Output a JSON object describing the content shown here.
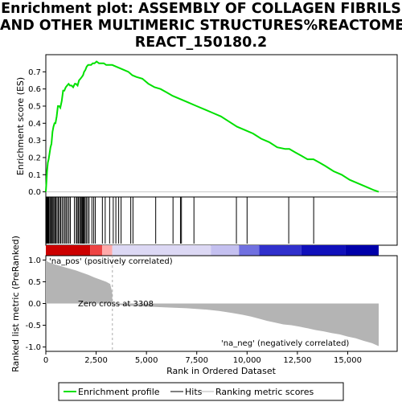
{
  "title_lines": [
    "Enrichment plot: ASSEMBLY OF COLLAGEN FIBRILS",
    "AND OTHER MULTIMERIC STRUCTURES%REACTOME%",
    "REACT_150180.2"
  ],
  "chart_data": {
    "type": "line",
    "colors": {
      "profile": "#00e000",
      "metric_fill": "#b4b4b4",
      "hits": "#000000",
      "zero_line": "#c8c8c8",
      "pos_label": "#e00000",
      "neg_label": "#0000c0"
    },
    "upper_panel": {
      "ylabel": "Enrichment score (ES)",
      "ylim": [
        -0.03,
        0.8
      ],
      "yticks": [
        0.0,
        0.1,
        0.2,
        0.3,
        0.4,
        0.5,
        0.6,
        0.7
      ],
      "ytick_labels": [
        "0.0",
        "0.1",
        "0.2",
        "0.3",
        "0.4",
        "0.5",
        "0.6",
        "0.7"
      ],
      "series": [
        {
          "name": "Enrichment profile",
          "x": [
            0,
            30,
            60,
            100,
            140,
            180,
            230,
            280,
            330,
            380,
            430,
            480,
            540,
            600,
            660,
            720,
            790,
            860,
            920,
            990,
            1060,
            1130,
            1200,
            1280,
            1360,
            1440,
            1500,
            1580,
            1650,
            1720,
            1790,
            1850,
            1900,
            1960,
            2030,
            2100,
            2170,
            2250,
            2330,
            2420,
            2520,
            2640,
            2760,
            2880,
            3000,
            3150,
            3300,
            3500,
            3700,
            3900,
            4100,
            4300,
            4500,
            4800,
            5100,
            5400,
            5700,
            6000,
            6300,
            6700,
            7100,
            7500,
            7900,
            8300,
            8700,
            9100,
            9500,
            9900,
            10300,
            10700,
            11100,
            11500,
            11900,
            12100,
            12400,
            12700,
            13000,
            13300,
            13600,
            13900,
            14300,
            14700,
            15100,
            15500,
            15900,
            16300,
            16540
          ],
          "y": [
            0.0,
            0.06,
            0.12,
            0.17,
            0.19,
            0.22,
            0.26,
            0.28,
            0.35,
            0.38,
            0.4,
            0.4,
            0.44,
            0.5,
            0.5,
            0.49,
            0.53,
            0.59,
            0.59,
            0.61,
            0.62,
            0.63,
            0.62,
            0.62,
            0.61,
            0.63,
            0.63,
            0.62,
            0.65,
            0.66,
            0.67,
            0.68,
            0.7,
            0.71,
            0.73,
            0.74,
            0.74,
            0.74,
            0.75,
            0.75,
            0.76,
            0.75,
            0.75,
            0.75,
            0.74,
            0.74,
            0.74,
            0.73,
            0.72,
            0.71,
            0.7,
            0.68,
            0.67,
            0.66,
            0.63,
            0.61,
            0.6,
            0.58,
            0.56,
            0.54,
            0.52,
            0.5,
            0.48,
            0.46,
            0.44,
            0.41,
            0.38,
            0.36,
            0.34,
            0.31,
            0.29,
            0.26,
            0.25,
            0.25,
            0.23,
            0.21,
            0.19,
            0.19,
            0.17,
            0.15,
            0.12,
            0.1,
            0.07,
            0.05,
            0.03,
            0.01,
            0.0
          ]
        }
      ]
    },
    "hits": [
      0,
      40,
      80,
      120,
      160,
      210,
      260,
      310,
      350,
      400,
      450,
      500,
      560,
      620,
      680,
      740,
      810,
      880,
      950,
      1010,
      1080,
      1150,
      1220,
      1420,
      1510,
      1560,
      1620,
      1680,
      1730,
      1770,
      1820,
      1860,
      1900,
      1950,
      2010,
      2080,
      2150,
      2290,
      2380,
      2460,
      2810,
      2950,
      3170,
      3350,
      3480,
      3620,
      3740,
      4220,
      4330,
      5460,
      6320,
      6690,
      6740,
      7360,
      9470,
      10000,
      12070,
      13310
    ],
    "rank_colorbar": {
      "segments": [
        {
          "start": 0,
          "end": 2200,
          "color": "#cc0000"
        },
        {
          "start": 2200,
          "end": 2800,
          "color": "#ee4444"
        },
        {
          "start": 2800,
          "end": 3300,
          "color": "#ffaaaa"
        },
        {
          "start": 3300,
          "end": 8200,
          "color": "#dcd8f4"
        },
        {
          "start": 8200,
          "end": 9600,
          "color": "#c4c0f0"
        },
        {
          "start": 9600,
          "end": 10600,
          "color": "#7070e0"
        },
        {
          "start": 10600,
          "end": 12700,
          "color": "#3030cc"
        },
        {
          "start": 12700,
          "end": 14900,
          "color": "#1010bb"
        },
        {
          "start": 14900,
          "end": 16540,
          "color": "#0000aa"
        }
      ]
    },
    "lower_panel": {
      "ylabel": "Ranked list metric (PreRanked)",
      "xlabel": "Rank in Ordered Dataset",
      "ylim": [
        -1.1,
        1.1
      ],
      "yticks": [
        1.0,
        0.5,
        0.0,
        -0.5,
        -1.0
      ],
      "ytick_labels": [
        "1.0",
        "0.5",
        "0.0",
        "-0.5",
        "-1.0"
      ],
      "xlim": [
        0,
        16540
      ],
      "xticks": [
        0,
        2500,
        5000,
        7500,
        10000,
        12500,
        15000
      ],
      "xtick_labels": [
        "0",
        "2,500",
        "5,000",
        "7,500",
        "10,000",
        "12,500",
        "15,000"
      ],
      "metric_x": [
        0,
        100,
        300,
        600,
        900,
        1200,
        1500,
        1800,
        2100,
        2400,
        2700,
        3000,
        3200,
        3300,
        3308,
        3500,
        4000,
        5000,
        6000,
        7000,
        8000,
        8600,
        9000,
        9400,
        9800,
        10200,
        10600,
        11000,
        11400,
        11800,
        12200,
        12600,
        13000,
        13400,
        13800,
        14200,
        14600,
        15000,
        15400,
        15800,
        16200,
        16540
      ],
      "metric_y": [
        1.0,
        0.96,
        0.92,
        0.88,
        0.84,
        0.8,
        0.76,
        0.71,
        0.66,
        0.6,
        0.55,
        0.5,
        0.45,
        0.25,
        0.0,
        -0.02,
        -0.05,
        -0.07,
        -0.09,
        -0.11,
        -0.14,
        -0.17,
        -0.2,
        -0.23,
        -0.26,
        -0.3,
        -0.35,
        -0.4,
        -0.44,
        -0.48,
        -0.5,
        -0.53,
        -0.57,
        -0.61,
        -0.64,
        -0.68,
        -0.71,
        -0.76,
        -0.8,
        -0.86,
        -0.91,
        -0.98
      ],
      "zero_cross": 3308,
      "zero_cross_label": "Zero cross at 3308",
      "pos_label": "'na_pos' (positively correlated)",
      "neg_label": "'na_neg' (negatively correlated)"
    },
    "legend": {
      "placement": "bottom",
      "items": [
        {
          "label": "Enrichment profile",
          "color": "#00e000"
        },
        {
          "label": "Hits",
          "color": "#000000"
        },
        {
          "label": "Ranking metric scores",
          "color": "#b4b4b4"
        }
      ]
    }
  }
}
